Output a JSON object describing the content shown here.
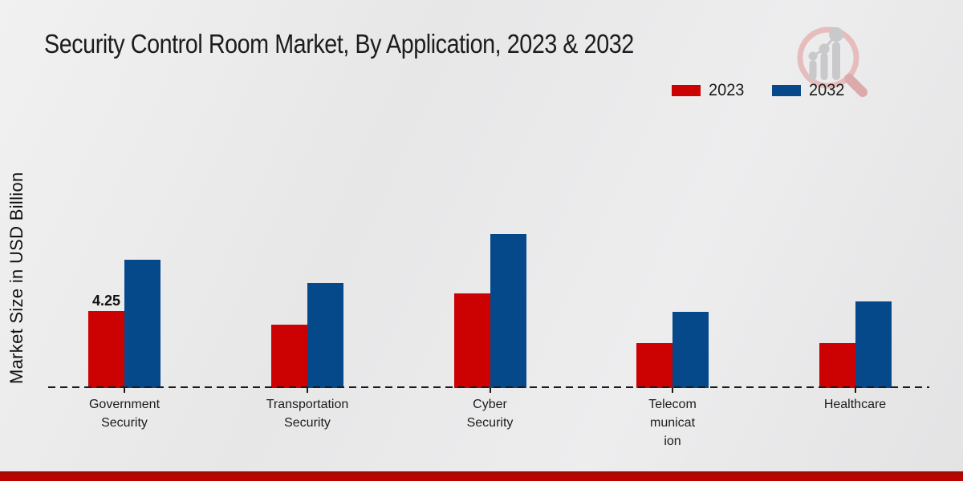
{
  "page": {
    "title": "Security Control Room Market, By Application, 2023 & 2032"
  },
  "axes": {
    "y_label": "Market Size in USD Billion"
  },
  "legend": {
    "items": [
      {
        "label": "2023",
        "color": "#cc0101"
      },
      {
        "label": "2032",
        "color": "#06498a"
      }
    ]
  },
  "annotations": {
    "government_security_2023_value": "4.25"
  },
  "watermark": {
    "icon": "magnifier-bar-chart-logo"
  },
  "footer": {
    "accent_color": "#b80500"
  },
  "chart_data": {
    "type": "bar",
    "title": "Security Control Room Market, By Application, 2023 & 2032",
    "xlabel": "",
    "ylabel": "Market Size in USD Billion",
    "categories": [
      "Government\nSecurity",
      "Transportation\nSecurity",
      "Cyber\nSecurity",
      "Telecom\nmunicat\nion",
      "Healthcare"
    ],
    "series": [
      {
        "name": "2023",
        "color": "#cc0101",
        "values": [
          4.25,
          3.5,
          5.2,
          2.5,
          2.5
        ],
        "data_labels": [
          "4.25",
          "",
          "",
          "",
          ""
        ]
      },
      {
        "name": "2032",
        "color": "#06498a",
        "values": [
          7.1,
          5.8,
          8.5,
          4.2,
          4.8
        ],
        "data_labels": [
          "",
          "",
          "",
          "",
          ""
        ]
      }
    ],
    "ylim": [
      0,
      10
    ],
    "grid": false,
    "legend_position": "top-right",
    "x_axis_style": "dashed-baseline",
    "background": "light-gray-gradient"
  }
}
